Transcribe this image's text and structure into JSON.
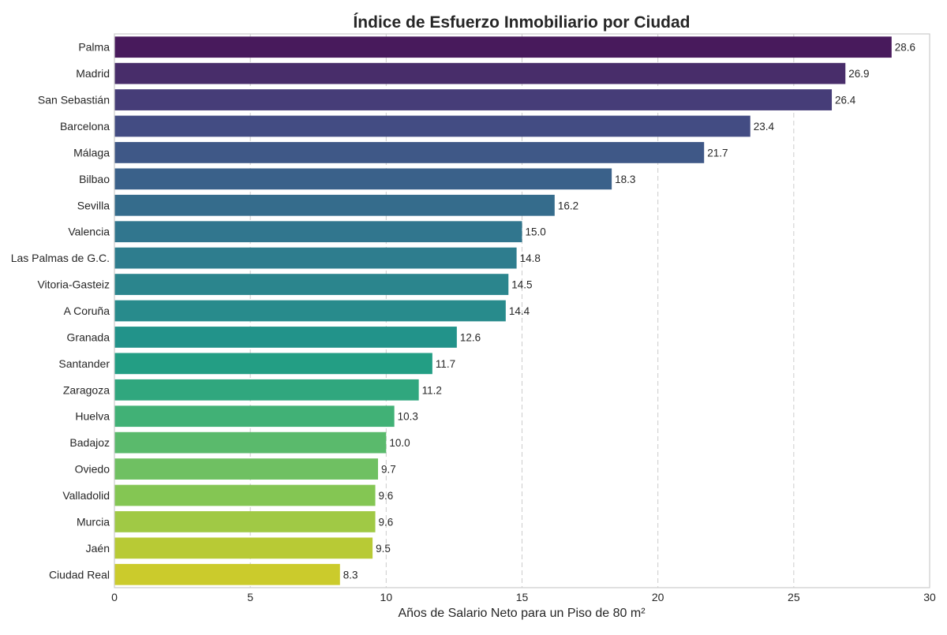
{
  "chart_data": {
    "type": "bar",
    "orientation": "horizontal",
    "title": "Índice de Esfuerzo Inmobiliario por Ciudad",
    "xlabel": "Años de Salario Neto para un Piso de 80 m²",
    "ylabel": "",
    "xlim": [
      0,
      30
    ],
    "xticks": [
      0,
      5,
      10,
      15,
      20,
      25,
      30
    ],
    "grid": "x-dashed",
    "categories": [
      "Palma",
      "Madrid",
      "San Sebastián",
      "Barcelona",
      "Málaga",
      "Bilbao",
      "Sevilla",
      "Valencia",
      "Las Palmas de G.C.",
      "Vitoria-Gasteiz",
      "A Coruña",
      "Granada",
      "Santander",
      "Zaragoza",
      "Huelva",
      "Badajoz",
      "Oviedo",
      "Valladolid",
      "Murcia",
      "Jaén",
      "Ciudad Real"
    ],
    "values": [
      28.6,
      26.9,
      26.4,
      23.4,
      21.7,
      18.3,
      16.2,
      15.0,
      14.8,
      14.5,
      14.4,
      12.6,
      11.7,
      11.2,
      10.3,
      10.0,
      9.7,
      9.6,
      9.6,
      9.5,
      8.3
    ],
    "value_labels": [
      "28.6",
      "26.9",
      "26.4",
      "23.4",
      "21.7",
      "18.3",
      "16.2",
      "15.0",
      "14.8",
      "14.5",
      "14.4",
      "12.6",
      "11.7",
      "11.2",
      "10.3",
      "10.0",
      "9.7",
      "9.6",
      "9.6",
      "9.5",
      "8.3"
    ],
    "colors": [
      "#481a5c",
      "#482d6a",
      "#463d78",
      "#434c83",
      "#3f5887",
      "#3a618a",
      "#356c8c",
      "#31768e",
      "#2e7d8e",
      "#2b858d",
      "#288b8c",
      "#22938a",
      "#239e84",
      "#30a77e",
      "#41b176",
      "#5aba6c",
      "#6fc062",
      "#84c653",
      "#a0c945",
      "#b8ca35",
      "#cbcb2c"
    ],
    "colormap": "viridis"
  }
}
